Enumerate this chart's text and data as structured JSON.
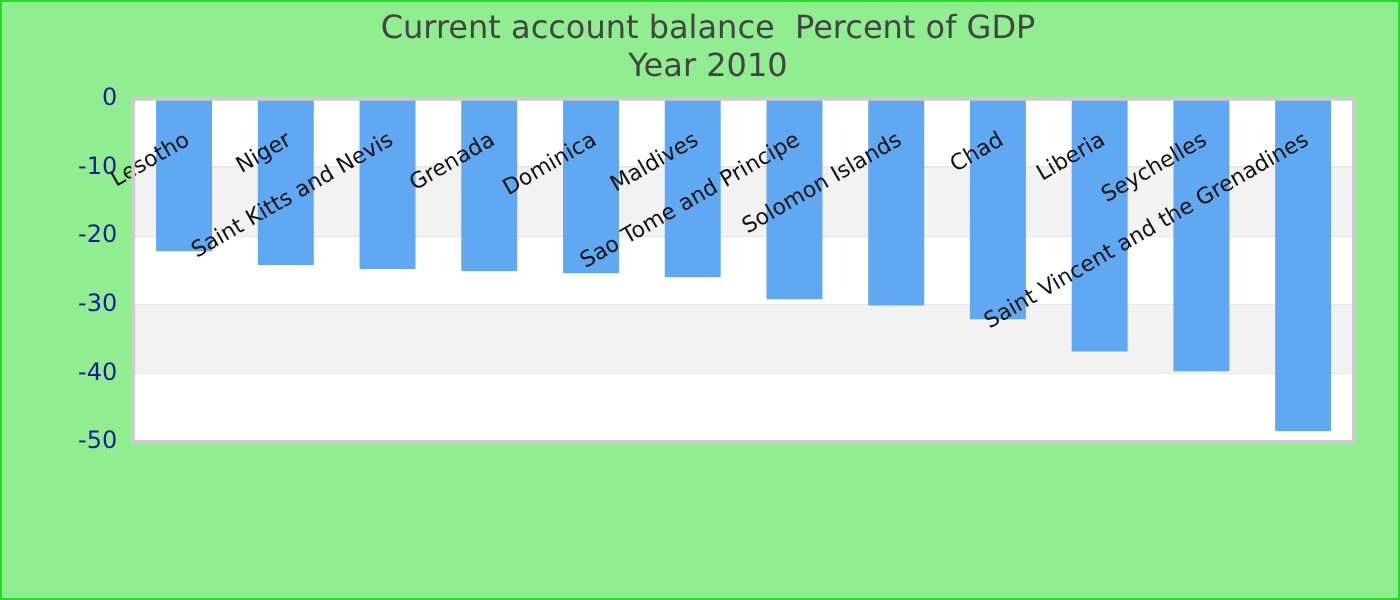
{
  "chart_data": {
    "type": "bar",
    "title": "Current account balance  Percent of GDP",
    "subtitle": "Year 2010",
    "categories": [
      "Lesotho",
      "Niger",
      "Saint Kitts and Nevis",
      "Grenada",
      "Dominica",
      "Maldives",
      "Sao Tome and Principe",
      "Solomon Islands",
      "Chad",
      "Liberia",
      "Seychelles",
      "Saint Vincent and the Grenadines"
    ],
    "values": [
      -22.2,
      -24.2,
      -24.8,
      -25.1,
      -25.4,
      -26.0,
      -29.2,
      -30.1,
      -32.1,
      -36.8,
      -39.7,
      -48.4
    ],
    "color": "#60a8f2",
    "ylim": [
      -50,
      0
    ],
    "yticks": [
      -50,
      -40,
      -30,
      -20,
      -10,
      0
    ],
    "grid": "y"
  }
}
